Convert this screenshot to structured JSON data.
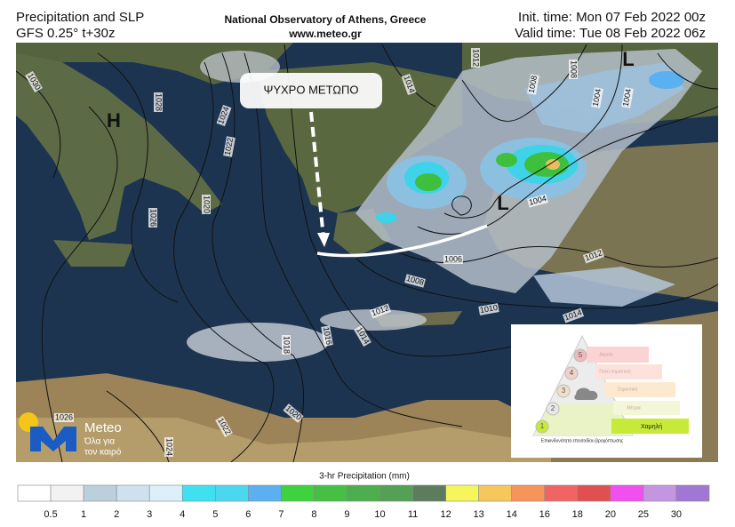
{
  "header": {
    "title": "Precipitation and SLP",
    "model": "GFS 0.25° t+30z",
    "institution": "National Observatory of Athens, Greece",
    "website": "www.meteo.gr",
    "init_time": "Init. time: Mon 07 Feb 2022 00z",
    "valid_time": "Valid time: Tue 08 Feb 2022 06z"
  },
  "map": {
    "annotation": "ΨΥΧΡΟ ΜΕΤΩΠΟ",
    "pressure_centers": [
      "H",
      "L",
      "L"
    ],
    "isobar_labels": [
      "1030",
      "1028",
      "1026",
      "1024",
      "1022",
      "1020",
      "1018",
      "1016",
      "1014",
      "1012",
      "1010",
      "1008",
      "1006",
      "1004",
      "1012",
      "1014",
      "1026",
      "1022",
      "1020",
      "1024",
      "1012",
      "1014",
      "1008",
      "1008",
      "1004",
      "1004"
    ]
  },
  "logo": {
    "name": "Meteo",
    "slogan_line1": "Όλα για",
    "slogan_line2": "τον καιρό"
  },
  "inset": {
    "levels": [
      "1",
      "2",
      "3",
      "4",
      "5"
    ],
    "level_names": [
      "Χαμηλή",
      "Μέτρια",
      "Σημαντική",
      "Πολύ σημαντική",
      "Ακραία"
    ],
    "caption": "Επικινδυνότητα επεισοδίου βροχόπτωσης"
  },
  "colorbar": {
    "title": "3-hr Precipitation (mm)",
    "colors": [
      "#ffffff",
      "#f2f2f2",
      "#bccfdc",
      "#cde2ee",
      "#dcf0fa",
      "#3fe0f0",
      "#4ad8f0",
      "#5ab0f0",
      "#3ed33e",
      "#45c045",
      "#4cae4c",
      "#54a054",
      "#5d7c5d",
      "#f6f65c",
      "#f6c85c",
      "#f6945c",
      "#f06464",
      "#e05050",
      "#f050f0",
      "#c496e0",
      "#a078d4"
    ],
    "labels": [
      "0.5",
      "1",
      "2",
      "3",
      "4",
      "5",
      "6",
      "7",
      "8",
      "9",
      "10",
      "11",
      "12",
      "13",
      "14",
      "16",
      "18",
      "20",
      "25",
      "30"
    ]
  }
}
